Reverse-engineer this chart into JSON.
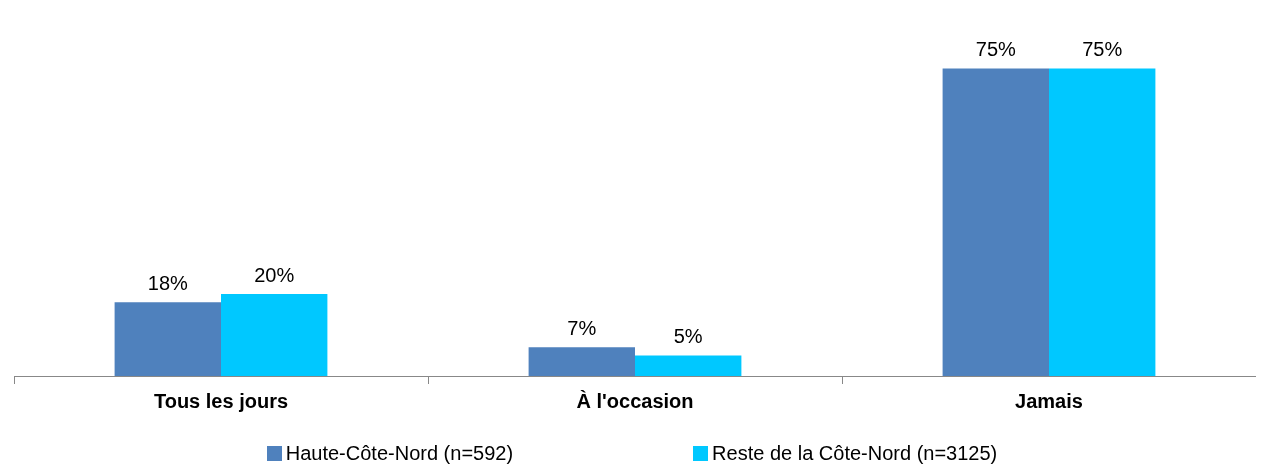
{
  "chart_data": {
    "type": "bar",
    "categories": [
      "Tous les jours",
      "À l'occasion",
      "Jamais"
    ],
    "series": [
      {
        "name": "Haute-Côte-Nord (n=592)",
        "color": "#4f81bd",
        "values": [
          18,
          7,
          75
        ],
        "value_labels": [
          "18%",
          "7%",
          "75%"
        ]
      },
      {
        "name": "Reste de la Côte-Nord (n=3125)",
        "color": "#00c8ff",
        "values": [
          20,
          5,
          75
        ],
        "value_labels": [
          "20%",
          "5%",
          "75%"
        ]
      }
    ],
    "legend": "bottom",
    "grid": false,
    "tick_labels": "x"
  }
}
